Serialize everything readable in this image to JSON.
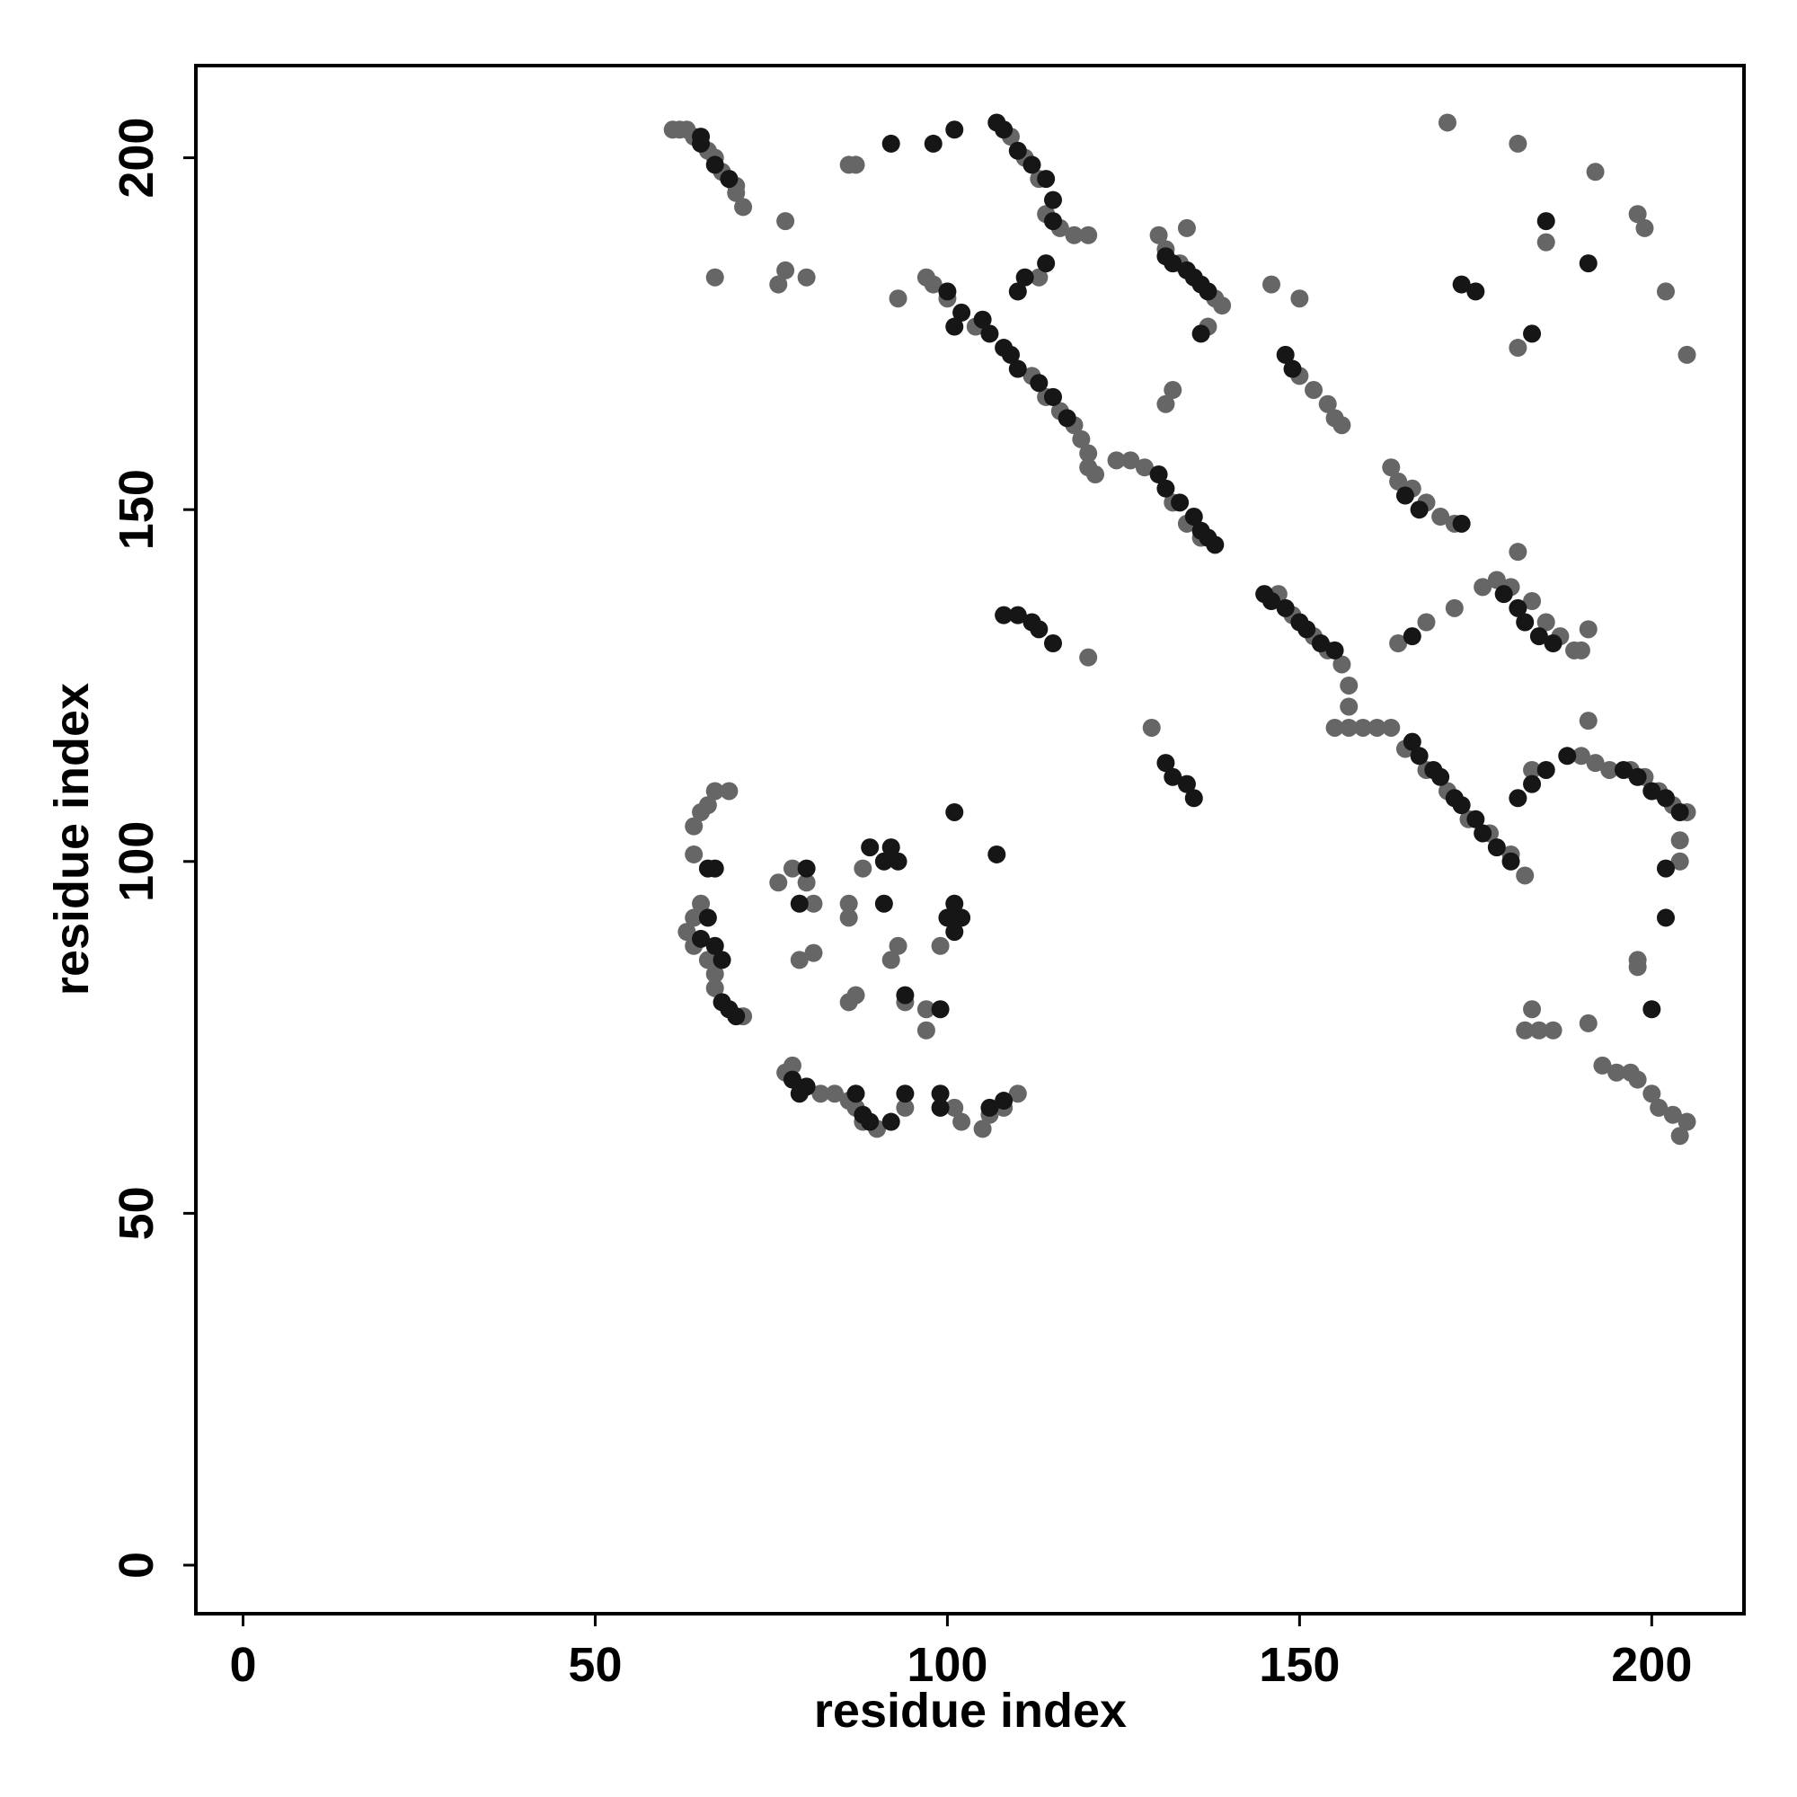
{
  "chart_data": {
    "type": "scatter",
    "x_label": "residue index",
    "y_label": "residue index",
    "xlim": [
      -6.7,
      213.1
    ],
    "ylim": [
      -6.9,
      213.1
    ],
    "xticks": [
      0,
      50,
      100,
      150,
      200
    ],
    "yticks": [
      0,
      50,
      100,
      150,
      200
    ],
    "grid": false,
    "series": [
      {
        "color": "#666666",
        "x": [
          61,
          62,
          63,
          64,
          66,
          67,
          68,
          69,
          70,
          70,
          71,
          67,
          77,
          77,
          76,
          80,
          86,
          87,
          109,
          111,
          113,
          114,
          116,
          118,
          120,
          113,
          97,
          98,
          93,
          100,
          104,
          112,
          114,
          116,
          118,
          119,
          120,
          120,
          121,
          124,
          126,
          128,
          132,
          134,
          136,
          130,
          131,
          134,
          133,
          138,
          139,
          137,
          131,
          132,
          146,
          150,
          150,
          152,
          154,
          155,
          156,
          163,
          164,
          166,
          168,
          170,
          172,
          147,
          149,
          152,
          154,
          156,
          157,
          157,
          120,
          155,
          157,
          159,
          161,
          163,
          165,
          168,
          171,
          174,
          177,
          180,
          182,
          129,
          178,
          180,
          183,
          185,
          187,
          189,
          191,
          190,
          176,
          172,
          168,
          164,
          191,
          190,
          192,
          194,
          197,
          199,
          201,
          203,
          205,
          181,
          181,
          183,
          181,
          185,
          192,
          198,
          199,
          202,
          205,
          171,
          64,
          65,
          66,
          67,
          69,
          64,
          65,
          63,
          64,
          66,
          67,
          67,
          69,
          71,
          64,
          76,
          78,
          80,
          81,
          79,
          81,
          88,
          86,
          86,
          86,
          87,
          92,
          93,
          94,
          97,
          97,
          99,
          77,
          78,
          80,
          82,
          84,
          86,
          87,
          88,
          90,
          94,
          102,
          105,
          106,
          108,
          110,
          101,
          182,
          184,
          186,
          183,
          191,
          198,
          198,
          193,
          195,
          197,
          198,
          200,
          201,
          203,
          205,
          204,
          204,
          204
        ],
        "y": [
          204,
          204,
          204,
          203,
          201,
          200,
          198,
          197,
          196,
          195,
          193,
          183,
          191,
          184,
          182,
          183,
          199,
          199,
          203,
          200,
          197,
          192,
          190,
          189,
          189,
          183,
          183,
          182,
          180,
          180,
          176,
          169,
          166,
          164,
          162,
          160,
          158,
          156,
          155,
          157,
          157,
          156,
          151,
          148,
          146,
          189,
          187,
          190,
          185,
          180,
          179,
          176,
          165,
          167,
          182,
          180,
          169,
          167,
          165,
          163,
          162,
          156,
          154,
          153,
          151,
          149,
          148,
          138,
          135,
          132,
          130,
          128,
          125,
          122,
          129,
          119,
          119,
          119,
          119,
          119,
          116,
          113,
          110,
          106,
          104,
          101,
          98,
          119,
          140,
          139,
          137,
          134,
          132,
          130,
          133,
          130,
          139,
          136,
          134,
          131,
          120,
          115,
          114,
          113,
          113,
          112,
          110,
          108,
          107,
          144,
          173,
          113,
          202,
          188,
          198,
          192,
          190,
          181,
          172,
          205,
          105,
          107,
          108,
          110,
          110,
          101,
          94,
          90,
          88,
          86,
          84,
          82,
          79,
          78,
          92,
          97,
          99,
          97,
          94,
          86,
          87,
          99,
          94,
          92,
          80,
          81,
          86,
          88,
          80,
          79,
          76,
          88,
          70,
          71,
          68,
          67,
          67,
          66,
          65,
          63,
          62,
          65,
          63,
          62,
          64,
          65,
          67,
          65,
          76,
          76,
          76,
          79,
          77,
          86,
          85,
          71,
          70,
          70,
          69,
          67,
          65,
          64,
          63,
          61,
          103,
          100
        ]
      },
      {
        "color": "#161616",
        "x": [
          65,
          65,
          67,
          69,
          92,
          98,
          101,
          107,
          108,
          110,
          112,
          114,
          115,
          115,
          111,
          114,
          110,
          100,
          102,
          101,
          105,
          106,
          108,
          109,
          110,
          113,
          115,
          117,
          130,
          131,
          133,
          135,
          136,
          137,
          138,
          131,
          132,
          134,
          135,
          136,
          137,
          136,
          148,
          149,
          165,
          167,
          173,
          145,
          146,
          148,
          150,
          151,
          153,
          155,
          166,
          167,
          169,
          170,
          172,
          173,
          175,
          176,
          178,
          180,
          179,
          181,
          182,
          184,
          186,
          166,
          131,
          132,
          134,
          135,
          110,
          112,
          113,
          115,
          108,
          181,
          183,
          185,
          188,
          196,
          198,
          200,
          202,
          204,
          202,
          202,
          200,
          185,
          183,
          191,
          175,
          173,
          66,
          66,
          65,
          67,
          68,
          68,
          69,
          70,
          67,
          80,
          79,
          89,
          91,
          92,
          93,
          91,
          100,
          101,
          102,
          101,
          101,
          107,
          99,
          94,
          78,
          79,
          80,
          87,
          88,
          89,
          92,
          94,
          99,
          99,
          106,
          108
        ],
        "y": [
          203,
          202,
          199,
          197,
          202,
          202,
          204,
          205,
          204,
          201,
          199,
          197,
          194,
          191,
          183,
          185,
          181,
          181,
          178,
          176,
          177,
          175,
          173,
          172,
          170,
          168,
          166,
          163,
          155,
          153,
          151,
          149,
          147,
          146,
          145,
          186,
          185,
          184,
          183,
          182,
          181,
          175,
          172,
          170,
          152,
          150,
          148,
          138,
          137,
          136,
          134,
          133,
          131,
          130,
          117,
          115,
          113,
          112,
          109,
          108,
          106,
          104,
          102,
          100,
          138,
          136,
          134,
          132,
          131,
          132,
          114,
          112,
          111,
          109,
          135,
          134,
          133,
          131,
          135,
          109,
          111,
          113,
          115,
          113,
          112,
          110,
          109,
          107,
          99,
          92,
          79,
          191,
          175,
          185,
          181,
          182,
          99,
          92,
          89,
          88,
          86,
          80,
          79,
          78,
          99,
          99,
          94,
          102,
          100,
          102,
          100,
          94,
          92,
          94,
          92,
          90,
          107,
          101,
          79,
          81,
          69,
          67,
          68,
          67,
          64,
          63,
          63,
          67,
          67,
          65,
          65,
          66
        ]
      }
    ]
  }
}
